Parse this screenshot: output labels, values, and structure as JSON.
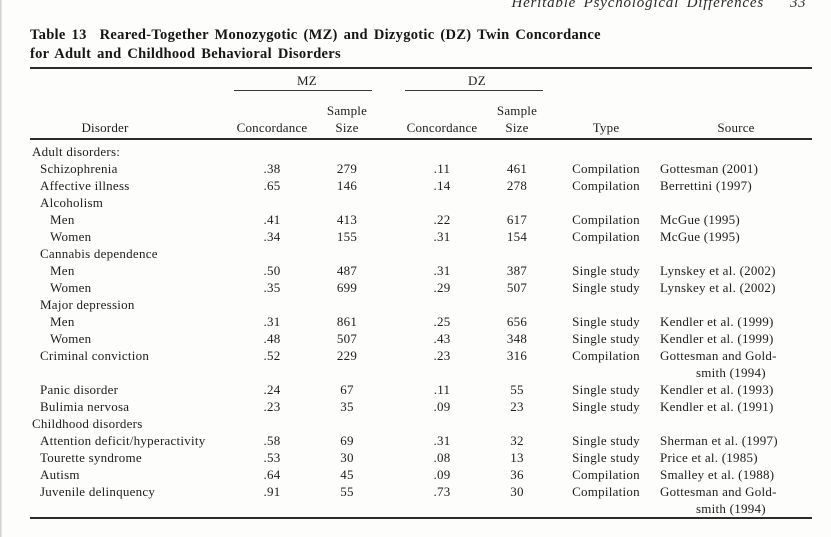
{
  "running_head": {
    "title": "Heritable Psychological Differences",
    "page_number": "33"
  },
  "table": {
    "label": "Table 13",
    "title_line1": "Reared-Together Monozygotic (MZ) and Dizygotic (DZ) Twin Concordance",
    "title_line2": "for Adult and Childhood Behavioral Disorders",
    "group_headers": {
      "mz": "MZ",
      "dz": "DZ"
    },
    "columns": {
      "disorder": "Disorder",
      "concordance": "Concordance",
      "sample_line1": "Sample",
      "sample_line2": "Size",
      "type": "Type",
      "source": "Source"
    },
    "rows": [
      {
        "label": "Adult disorders:",
        "indent": 0
      },
      {
        "label": "Schizophrenia",
        "indent": 1,
        "mz_concordance": ".38",
        "mz_sample_size": "279",
        "dz_concordance": ".11",
        "dz_sample_size": "461",
        "type": "Compilation",
        "source": "Gottesman (2001)"
      },
      {
        "label": "Affective illness",
        "indent": 1,
        "mz_concordance": ".65",
        "mz_sample_size": "146",
        "dz_concordance": ".14",
        "dz_sample_size": "278",
        "type": "Compilation",
        "source": "Berrettini (1997)"
      },
      {
        "label": "Alcoholism",
        "indent": 1
      },
      {
        "label": "Men",
        "indent": 2,
        "mz_concordance": ".41",
        "mz_sample_size": "413",
        "dz_concordance": ".22",
        "dz_sample_size": "617",
        "type": "Compilation",
        "source": "McGue (1995)"
      },
      {
        "label": "Women",
        "indent": 2,
        "mz_concordance": ".34",
        "mz_sample_size": "155",
        "dz_concordance": ".31",
        "dz_sample_size": "154",
        "type": "Compilation",
        "source": "McGue (1995)"
      },
      {
        "label": "Cannabis dependence",
        "indent": 1
      },
      {
        "label": "Men",
        "indent": 2,
        "mz_concordance": ".50",
        "mz_sample_size": "487",
        "dz_concordance": ".31",
        "dz_sample_size": "387",
        "type": "Single study",
        "source": "Lynskey et al. (2002)"
      },
      {
        "label": "Women",
        "indent": 2,
        "mz_concordance": ".35",
        "mz_sample_size": "699",
        "dz_concordance": ".29",
        "dz_sample_size": "507",
        "type": "Single study",
        "source": "Lynskey et al. (2002)"
      },
      {
        "label": "Major depression",
        "indent": 1
      },
      {
        "label": "Men",
        "indent": 2,
        "mz_concordance": ".31",
        "mz_sample_size": "861",
        "dz_concordance": ".25",
        "dz_sample_size": "656",
        "type": "Single study",
        "source": "Kendler et al. (1999)"
      },
      {
        "label": "Women",
        "indent": 2,
        "mz_concordance": ".48",
        "mz_sample_size": "507",
        "dz_concordance": ".43",
        "dz_sample_size": "348",
        "type": "Single study",
        "source": "Kendler et al. (1999)"
      },
      {
        "label": "Criminal conviction",
        "indent": 1,
        "mz_concordance": ".52",
        "mz_sample_size": "229",
        "dz_concordance": ".23",
        "dz_sample_size": "316",
        "type": "Compilation",
        "source": "Gottesman and Gold-",
        "source_line2": "smith (1994)"
      },
      {
        "label": "Panic disorder",
        "indent": 1,
        "mz_concordance": ".24",
        "mz_sample_size": "67",
        "dz_concordance": ".11",
        "dz_sample_size": "55",
        "type": "Single study",
        "source": "Kendler et al. (1993)"
      },
      {
        "label": "Bulimia nervosa",
        "indent": 1,
        "mz_concordance": ".23",
        "mz_sample_size": "35",
        "dz_concordance": ".09",
        "dz_sample_size": "23",
        "type": "Single study",
        "source": "Kendler et al. (1991)"
      },
      {
        "label": "Childhood disorders",
        "indent": 0
      },
      {
        "label": "Attention deficit/hyperactivity",
        "indent": 1,
        "mz_concordance": ".58",
        "mz_sample_size": "69",
        "dz_concordance": ".31",
        "dz_sample_size": "32",
        "type": "Single study",
        "source": "Sherman et al. (1997)"
      },
      {
        "label": "Tourette syndrome",
        "indent": 1,
        "mz_concordance": ".53",
        "mz_sample_size": "30",
        "dz_concordance": ".08",
        "dz_sample_size": "13",
        "type": "Single study",
        "source": "Price et al. (1985)"
      },
      {
        "label": "Autism",
        "indent": 1,
        "mz_concordance": ".64",
        "mz_sample_size": "45",
        "dz_concordance": ".09",
        "dz_sample_size": "36",
        "type": "Compilation",
        "source": "Smalley et al. (1988)"
      },
      {
        "label": "Juvenile delinquency",
        "indent": 1,
        "mz_concordance": ".91",
        "mz_sample_size": "55",
        "dz_concordance": ".73",
        "dz_sample_size": "30",
        "type": "Compilation",
        "source": "Gottesman and Gold-",
        "source_line2": "smith (1994)"
      }
    ]
  }
}
